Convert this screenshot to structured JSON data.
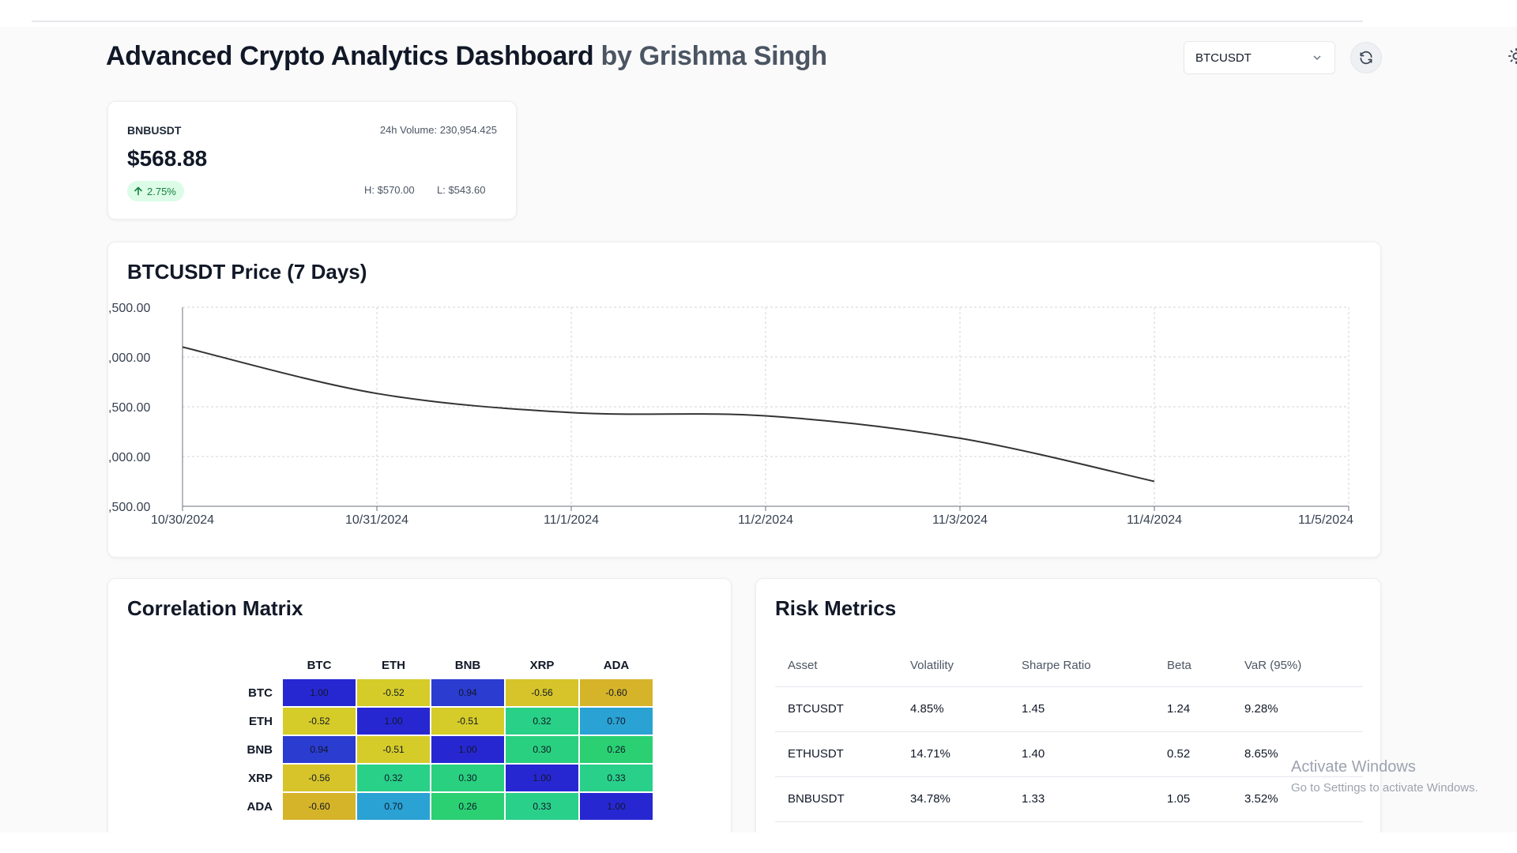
{
  "header": {
    "title_main": "Advanced Crypto Analytics Dashboard",
    "title_author": "by Grishma Singh",
    "symbol_select": "BTCUSDT",
    "icons": {
      "chevron": "chevron-down-icon",
      "refresh": "refresh-icon",
      "theme": "sun-icon"
    }
  },
  "ticker": {
    "symbol": "BNBUSDT",
    "volume": "24h Volume: 230,954.425",
    "price": "$568.88",
    "change": "2.75%",
    "change_icon": "arrow-up-icon",
    "high": "H: $570.00",
    "low": "L: $543.60",
    "colors": {
      "positive_bg": "#dcfce7",
      "positive_text": "#15803d"
    }
  },
  "price_chart": {
    "title": "BTCUSDT Price (7 Days)"
  },
  "chart_data": {
    "type": "line",
    "title": "BTCUSDT Price (7 Days)",
    "x": [
      "10/30/2024",
      "10/31/2024",
      "11/1/2024",
      "11/2/2024",
      "11/3/2024",
      "11/4/2024",
      "11/5/2024"
    ],
    "series": [
      {
        "values": [
          72100,
          69300,
          68150,
          67950,
          66600,
          64000,
          null
        ],
        "color": "#333333"
      }
    ],
    "y_tick_labels": [
      ",500.00",
      ",000.00",
      ",500.00",
      ",000.00",
      ",500.00"
    ],
    "ylim": [
      62500,
      74500
    ],
    "xlabel": "",
    "ylabel": "",
    "grid": true,
    "legend": "none"
  },
  "correlation": {
    "title": "Correlation Matrix",
    "labels": [
      "BTC",
      "ETH",
      "BNB",
      "XRP",
      "ADA"
    ],
    "rows": [
      {
        "label": "BTC",
        "cells": [
          {
            "text": "1.00",
            "color": "#2727d2"
          },
          {
            "text": "-0.52",
            "color": "#d5cc29"
          },
          {
            "text": "0.94",
            "color": "#2b3cd0"
          },
          {
            "text": "-0.56",
            "color": "#d6c42a"
          },
          {
            "text": "-0.60",
            "color": "#d6b42a"
          }
        ]
      },
      {
        "label": "ETH",
        "cells": [
          {
            "text": "-0.52",
            "color": "#d5cc29"
          },
          {
            "text": "1.00",
            "color": "#2727d2"
          },
          {
            "text": "-0.51",
            "color": "#d5cc29"
          },
          {
            "text": "0.32",
            "color": "#29d087"
          },
          {
            "text": "0.70",
            "color": "#2aa2d4"
          }
        ]
      },
      {
        "label": "BNB",
        "cells": [
          {
            "text": "0.94",
            "color": "#2b3cd0"
          },
          {
            "text": "-0.51",
            "color": "#d5cc29"
          },
          {
            "text": "1.00",
            "color": "#2727d2"
          },
          {
            "text": "0.30",
            "color": "#29d07f"
          },
          {
            "text": "0.26",
            "color": "#2ad072"
          }
        ]
      },
      {
        "label": "XRP",
        "cells": [
          {
            "text": "-0.56",
            "color": "#d6c42a"
          },
          {
            "text": "0.32",
            "color": "#29d087"
          },
          {
            "text": "0.30",
            "color": "#29d07f"
          },
          {
            "text": "1.00",
            "color": "#2727d2"
          },
          {
            "text": "0.33",
            "color": "#29d08a"
          }
        ]
      },
      {
        "label": "ADA",
        "cells": [
          {
            "text": "-0.60",
            "color": "#d6b42a"
          },
          {
            "text": "0.70",
            "color": "#2aa2d4"
          },
          {
            "text": "0.26",
            "color": "#2ad072"
          },
          {
            "text": "0.33",
            "color": "#29d08a"
          },
          {
            "text": "1.00",
            "color": "#2727d2"
          }
        ]
      }
    ]
  },
  "risk": {
    "title": "Risk Metrics",
    "headers": [
      "Asset",
      "Volatility",
      "Sharpe Ratio",
      "Beta",
      "VaR (95%)"
    ],
    "rows": [
      [
        "BTCUSDT",
        "4.85%",
        "1.45",
        "1.24",
        "9.28%"
      ],
      [
        "ETHUSDT",
        "14.71%",
        "1.40",
        "0.52",
        "8.65%"
      ],
      [
        "BNBUSDT",
        "34.78%",
        "1.33",
        "1.05",
        "3.52%"
      ]
    ]
  },
  "watermark": {
    "line1": "Activate Windows",
    "line2": "Go to Settings to activate Windows."
  }
}
